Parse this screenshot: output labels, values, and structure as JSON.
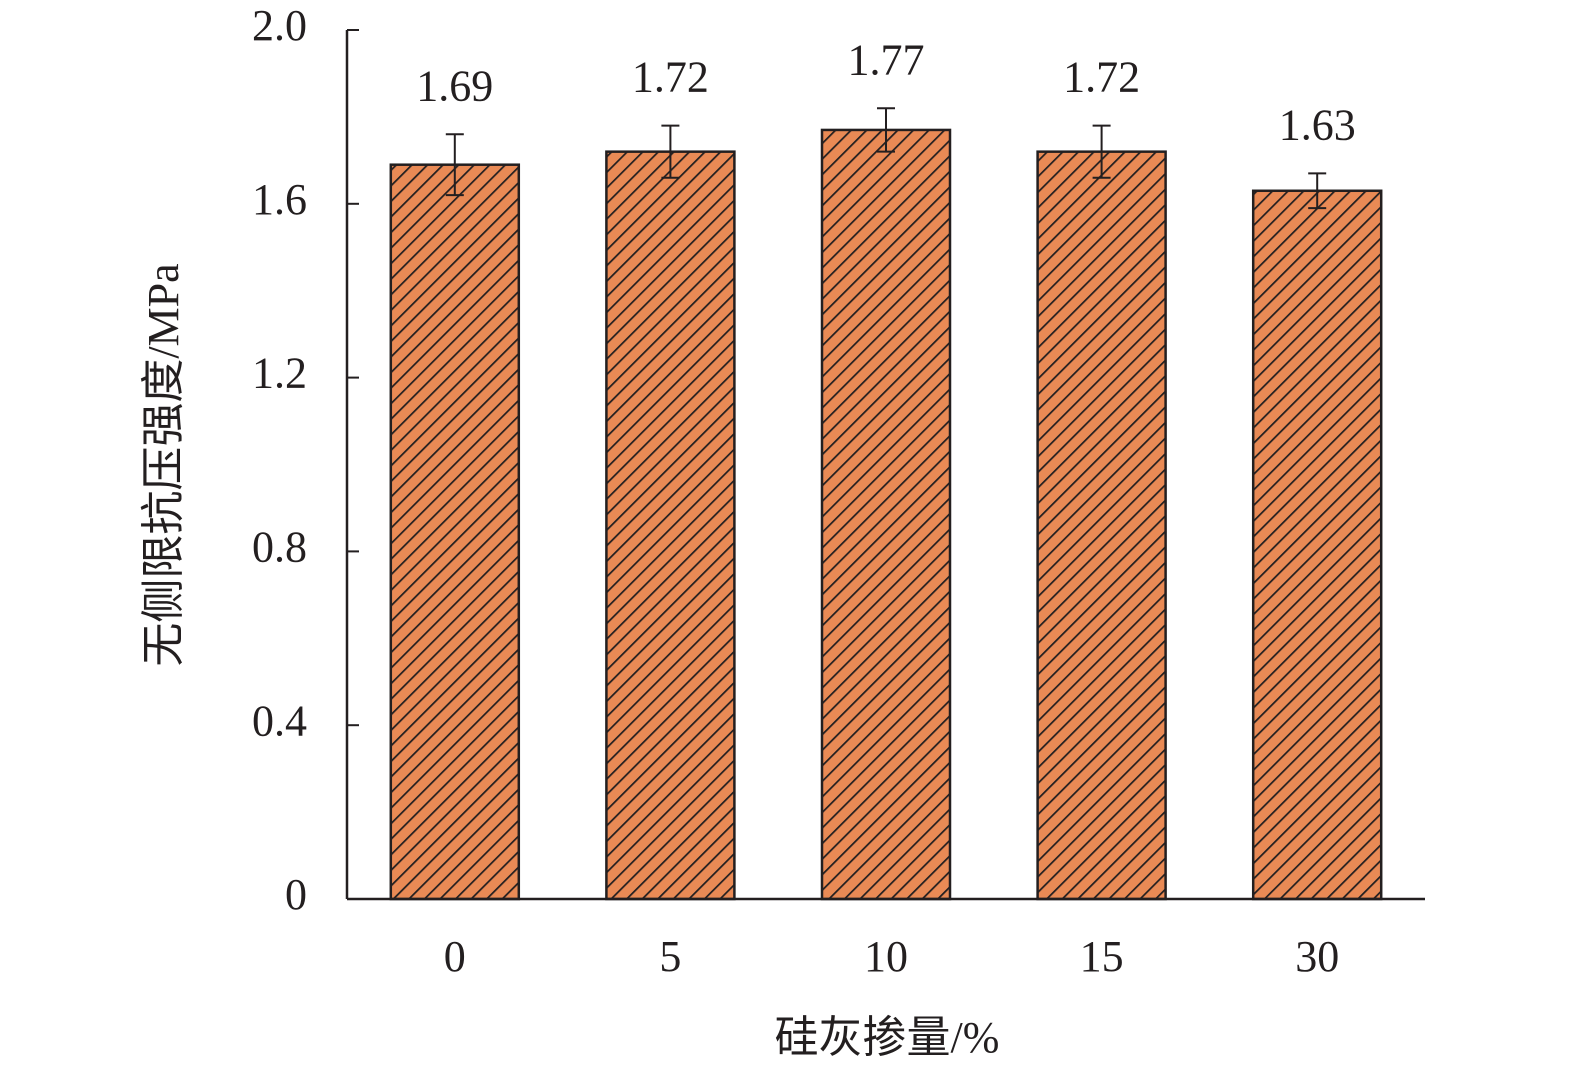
{
  "chart_data": {
    "type": "bar",
    "x_label": "硅灰掺量/%",
    "y_label": "无侧限抗压强度/MPa",
    "categories": [
      "0",
      "5",
      "10",
      "15",
      "30"
    ],
    "values": [
      1.69,
      1.72,
      1.77,
      1.72,
      1.63
    ],
    "errors": [
      0.07,
      0.06,
      0.05,
      0.06,
      0.04
    ],
    "color": "#e98a55",
    "ylim": [
      0,
      2
    ],
    "yticks": [
      0,
      0.4,
      0.8,
      1.2,
      1.6,
      {
        "value": 2,
        "label": "2.0"
      }
    ],
    "grid": false
  }
}
